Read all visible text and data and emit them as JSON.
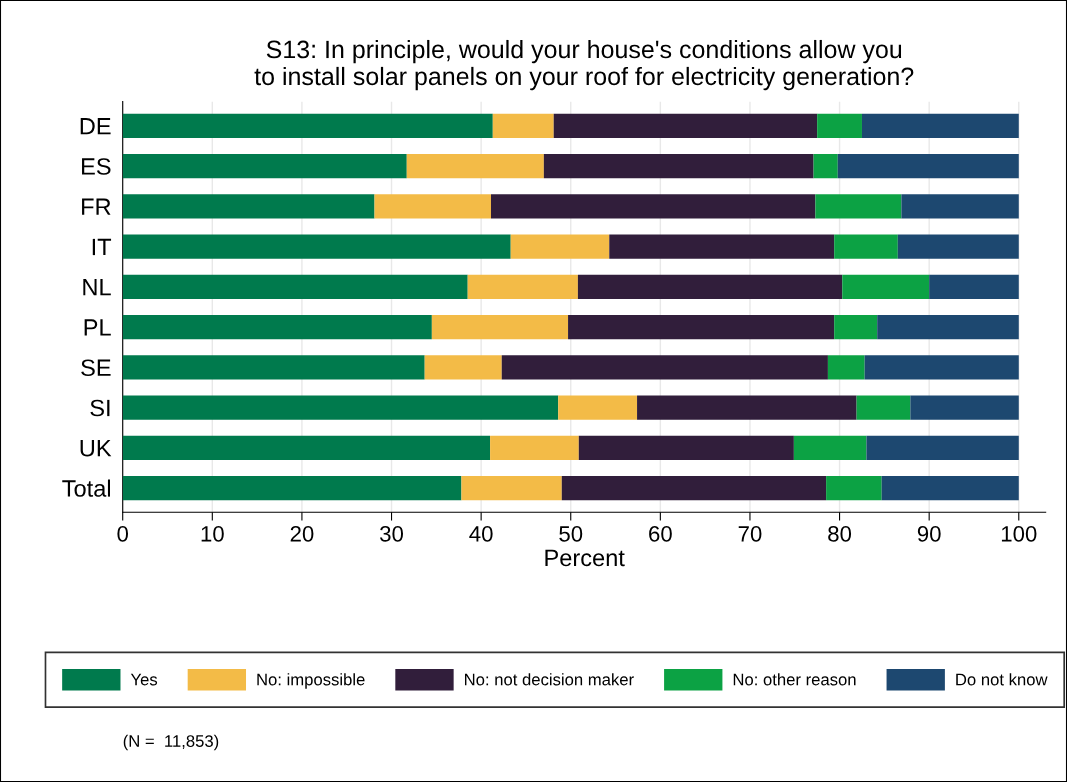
{
  "chart_data": {
    "type": "bar",
    "orientation": "horizontal",
    "stacked": true,
    "title": "S13: In principle, would your house's conditions allow you\nto install solar panels on your roof for electricity generation?",
    "xlabel": "Percent",
    "categories": [
      "DE",
      "ES",
      "FR",
      "IT",
      "NL",
      "PL",
      "SE",
      "SI",
      "UK",
      "Total"
    ],
    "series": [
      {
        "name": "Yes",
        "color": "#007a4d",
        "values": [
          41.3,
          31.7,
          28.1,
          43.3,
          38.5,
          34.5,
          33.7,
          48.6,
          41.0,
          37.8
        ]
      },
      {
        "name": "No: impossible",
        "color": "#f3bb47",
        "values": [
          6.8,
          15.3,
          13.0,
          11.0,
          12.3,
          15.2,
          8.6,
          8.8,
          9.9,
          11.2
        ]
      },
      {
        "name": "No: not decision maker",
        "color": "#311e3b",
        "values": [
          29.4,
          30.1,
          36.2,
          25.1,
          29.5,
          29.7,
          36.4,
          24.5,
          24.0,
          29.5
        ]
      },
      {
        "name": "No: other reason",
        "color": "#0ca244",
        "values": [
          5.0,
          2.7,
          9.6,
          7.1,
          9.7,
          4.8,
          4.1,
          6.0,
          8.1,
          6.2
        ]
      },
      {
        "name": "Do not know",
        "color": "#1d4870",
        "values": [
          17.5,
          20.2,
          13.1,
          13.5,
          10.0,
          15.8,
          17.2,
          12.1,
          17.0,
          15.3
        ]
      }
    ],
    "xlim": [
      0,
      103
    ],
    "xticks": [
      0,
      10,
      20,
      30,
      40,
      50,
      60,
      70,
      80,
      90,
      100
    ],
    "grid": "x",
    "legend": "bottom",
    "annotations": [
      "(N =  11,853)"
    ]
  }
}
